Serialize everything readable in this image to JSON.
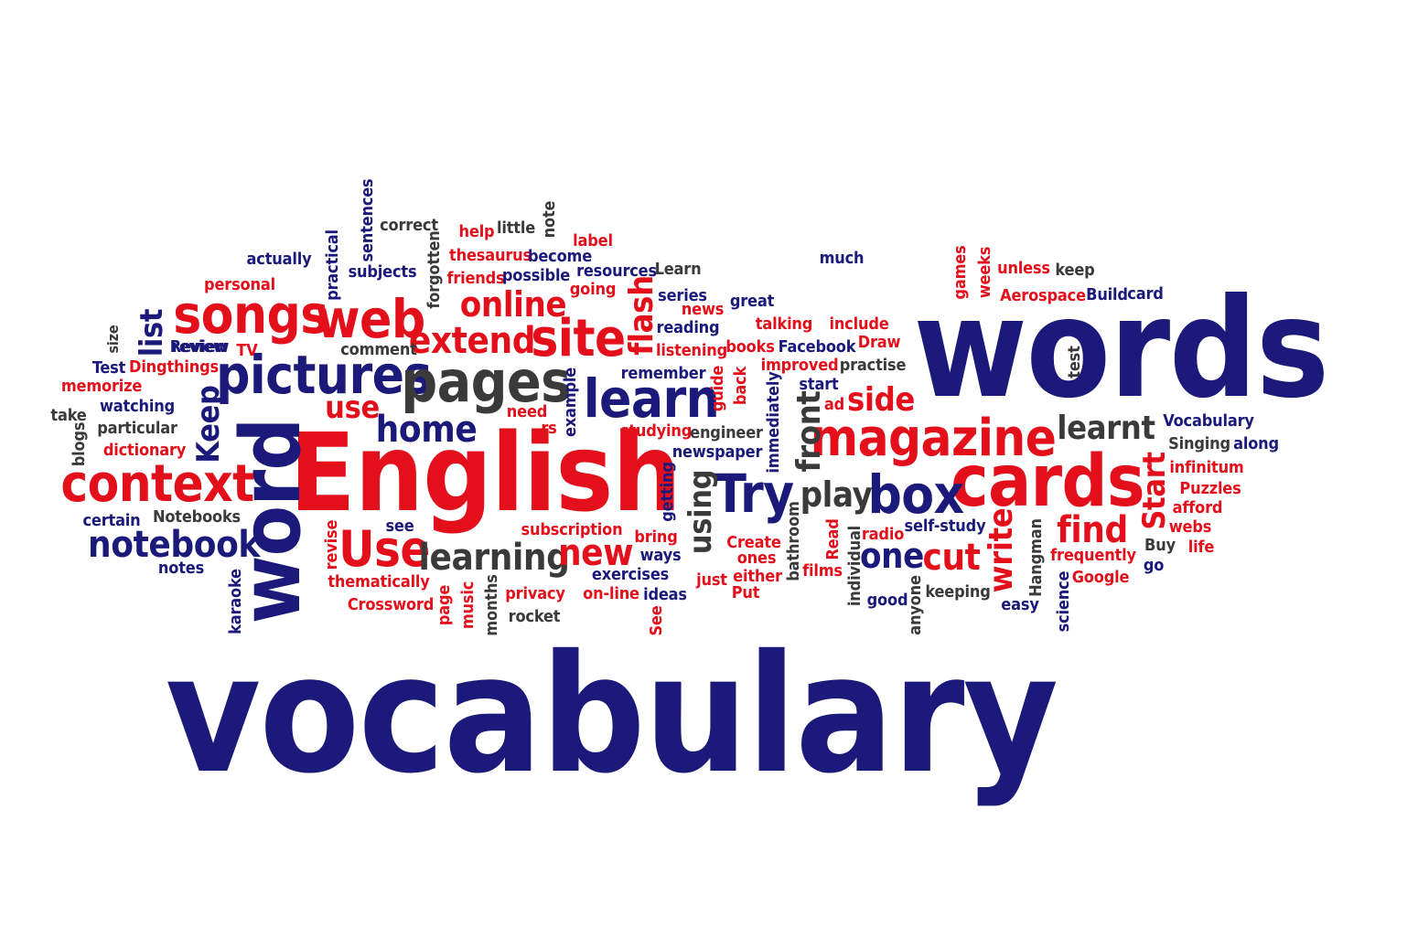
{
  "words": [
    {
      "id": "vocabulary",
      "text": "vocabulary",
      "color": "blue"
    },
    {
      "id": "words",
      "text": "words",
      "color": "blue"
    },
    {
      "id": "english",
      "text": "English",
      "color": "red"
    },
    {
      "id": "word",
      "text": "word",
      "color": "blue"
    },
    {
      "id": "cards",
      "text": "cards",
      "color": "red"
    },
    {
      "id": "review",
      "text": "Review",
      "color": "blue"
    },
    {
      "id": "pictures",
      "text": "pictures",
      "color": "blue"
    },
    {
      "id": "pages",
      "text": "pages",
      "color": "gray"
    },
    {
      "id": "songs",
      "text": "songs",
      "color": "red"
    },
    {
      "id": "web",
      "text": "web",
      "color": "red"
    },
    {
      "id": "context",
      "text": "context",
      "color": "red"
    },
    {
      "id": "magazine",
      "text": "magazine",
      "color": "red"
    },
    {
      "id": "learn",
      "text": "learn",
      "color": "blue"
    },
    {
      "id": "site",
      "text": "site",
      "color": "red"
    },
    {
      "id": "try",
      "text": "Try",
      "color": "blue"
    },
    {
      "id": "box",
      "text": "box",
      "color": "blue"
    },
    {
      "id": "use-cap",
      "text": "Use",
      "color": "red"
    },
    {
      "id": "notebook",
      "text": "notebook",
      "color": "blue"
    },
    {
      "id": "learning",
      "text": "learning",
      "color": "gray"
    },
    {
      "id": "extend",
      "text": "extend",
      "color": "red"
    },
    {
      "id": "online",
      "text": "online",
      "color": "red"
    },
    {
      "id": "home",
      "text": "home",
      "color": "blue"
    },
    {
      "id": "new",
      "text": "new",
      "color": "red"
    },
    {
      "id": "find",
      "text": "find",
      "color": "red"
    },
    {
      "id": "cut",
      "text": "cut",
      "color": "red"
    },
    {
      "id": "one",
      "text": "one",
      "color": "blue"
    },
    {
      "id": "play",
      "text": "play",
      "color": "gray"
    },
    {
      "id": "learnt",
      "text": "learnt",
      "color": "gray"
    },
    {
      "id": "side",
      "text": "side",
      "color": "red"
    },
    {
      "id": "use",
      "text": "use",
      "color": "red"
    },
    {
      "id": "keep-cap",
      "text": "Keep",
      "color": "blue"
    },
    {
      "id": "list",
      "text": "list",
      "color": "blue"
    },
    {
      "id": "flash",
      "text": "flash",
      "color": "red"
    },
    {
      "id": "front",
      "text": "front",
      "color": "gray"
    },
    {
      "id": "using",
      "text": "using",
      "color": "gray"
    },
    {
      "id": "write",
      "text": "write",
      "color": "red"
    },
    {
      "id": "start-cap",
      "text": "Start",
      "color": "red"
    },
    {
      "id": "sentences",
      "text": "sentences",
      "color": "blue"
    },
    {
      "id": "correct",
      "text": "correct",
      "color": "gray"
    },
    {
      "id": "help",
      "text": "help",
      "color": "red"
    },
    {
      "id": "little",
      "text": "little",
      "color": "gray"
    },
    {
      "id": "note",
      "text": "note",
      "color": "gray"
    },
    {
      "id": "label",
      "text": "label",
      "color": "red"
    },
    {
      "id": "thesaurus",
      "text": "thesaurus",
      "color": "red"
    },
    {
      "id": "become",
      "text": "become",
      "color": "blue"
    },
    {
      "id": "forgotten",
      "text": "forgotten",
      "color": "gray"
    },
    {
      "id": "practical",
      "text": "practical",
      "color": "blue"
    },
    {
      "id": "actually",
      "text": "actually",
      "color": "blue"
    },
    {
      "id": "subjects",
      "text": "subjects",
      "color": "blue"
    },
    {
      "id": "friends",
      "text": "friends",
      "color": "red"
    },
    {
      "id": "possible",
      "text": "possible",
      "color": "blue"
    },
    {
      "id": "resources",
      "text": "resources",
      "color": "blue"
    },
    {
      "id": "learn-cap",
      "text": "Learn",
      "color": "gray"
    },
    {
      "id": "personal",
      "text": "personal",
      "color": "red"
    },
    {
      "id": "going",
      "text": "going",
      "color": "red"
    },
    {
      "id": "series",
      "text": "series",
      "color": "blue"
    },
    {
      "id": "news",
      "text": "news",
      "color": "red"
    },
    {
      "id": "reading",
      "text": "reading",
      "color": "blue"
    },
    {
      "id": "listening",
      "text": "listening",
      "color": "red"
    },
    {
      "id": "great",
      "text": "great",
      "color": "blue"
    },
    {
      "id": "much",
      "text": "much",
      "color": "blue"
    },
    {
      "id": "games",
      "text": "games",
      "color": "red"
    },
    {
      "id": "weeks",
      "text": "weeks",
      "color": "red"
    },
    {
      "id": "unless",
      "text": "unless",
      "color": "red"
    },
    {
      "id": "keep",
      "text": "keep",
      "color": "gray"
    },
    {
      "id": "aerospace",
      "text": "Aerospace",
      "color": "red"
    },
    {
      "id": "build",
      "text": "Build",
      "color": "blue"
    },
    {
      "id": "card",
      "text": "card",
      "color": "blue"
    },
    {
      "id": "talking",
      "text": "talking",
      "color": "red"
    },
    {
      "id": "include",
      "text": "include",
      "color": "red"
    },
    {
      "id": "books",
      "text": "books",
      "color": "red"
    },
    {
      "id": "facebook",
      "text": "Facebook",
      "color": "blue"
    },
    {
      "id": "draw",
      "text": "Draw",
      "color": "red"
    },
    {
      "id": "improved",
      "text": "improved",
      "color": "red"
    },
    {
      "id": "practise",
      "text": "practise",
      "color": "gray"
    },
    {
      "id": "test",
      "text": "test",
      "color": "gray"
    },
    {
      "id": "size",
      "text": "size",
      "color": "gray"
    },
    {
      "id": "review",
      "text": "review",
      "color": "blue"
    },
    {
      "id": "tv",
      "text": "TV",
      "color": "red"
    },
    {
      "id": "comment",
      "text": "comment",
      "color": "gray"
    },
    {
      "id": "test-cap",
      "text": "Test",
      "color": "blue"
    },
    {
      "id": "dingthings",
      "text": "Dingthings",
      "color": "red"
    },
    {
      "id": "memorize",
      "text": "memorize",
      "color": "red"
    },
    {
      "id": "remember",
      "text": "remember",
      "color": "blue"
    },
    {
      "id": "guide",
      "text": "guide",
      "color": "red"
    },
    {
      "id": "back",
      "text": "back",
      "color": "red"
    },
    {
      "id": "immediately",
      "text": "immediately",
      "color": "blue"
    },
    {
      "id": "start",
      "text": "start",
      "color": "blue"
    },
    {
      "id": "ad",
      "text": "ad",
      "color": "red"
    },
    {
      "id": "example",
      "text": "example",
      "color": "blue"
    },
    {
      "id": "take",
      "text": "take",
      "color": "gray"
    },
    {
      "id": "watching",
      "text": "watching",
      "color": "blue"
    },
    {
      "id": "need",
      "text": "need",
      "color": "red"
    },
    {
      "id": "rs",
      "text": "rs",
      "color": "red"
    },
    {
      "id": "studying",
      "text": "studying",
      "color": "red"
    },
    {
      "id": "engineer",
      "text": "engineer",
      "color": "gray"
    },
    {
      "id": "newspaper",
      "text": "newspaper",
      "color": "blue"
    },
    {
      "id": "vocabulary-cap",
      "text": "Vocabulary",
      "color": "blue"
    },
    {
      "id": "singing",
      "text": "Singing",
      "color": "gray"
    },
    {
      "id": "along",
      "text": "along",
      "color": "blue"
    },
    {
      "id": "blogs",
      "text": "blogs",
      "color": "gray"
    },
    {
      "id": "particular",
      "text": "particular",
      "color": "gray"
    },
    {
      "id": "dictionary",
      "text": "dictionary",
      "color": "red"
    },
    {
      "id": "getting",
      "text": "getting",
      "color": "blue"
    },
    {
      "id": "infinitum",
      "text": "infinitum",
      "color": "red"
    },
    {
      "id": "puzzles",
      "text": "Puzzles",
      "color": "red"
    },
    {
      "id": "afford",
      "text": "afford",
      "color": "red"
    },
    {
      "id": "webs",
      "text": "webs",
      "color": "red"
    },
    {
      "id": "life",
      "text": "life",
      "color": "red"
    },
    {
      "id": "buy",
      "text": "Buy",
      "color": "gray"
    },
    {
      "id": "go",
      "text": "go",
      "color": "blue"
    },
    {
      "id": "certain",
      "text": "certain",
      "color": "blue"
    },
    {
      "id": "notebooks",
      "text": "Notebooks",
      "color": "gray"
    },
    {
      "id": "revise",
      "text": "revise",
      "color": "red"
    },
    {
      "id": "see",
      "text": "see",
      "color": "blue"
    },
    {
      "id": "subscription",
      "text": "subscription",
      "color": "red"
    },
    {
      "id": "bring",
      "text": "bring",
      "color": "red"
    },
    {
      "id": "create",
      "text": "Create",
      "color": "red"
    },
    {
      "id": "ones",
      "text": "ones",
      "color": "red"
    },
    {
      "id": "bathroom",
      "text": "bathroom",
      "color": "gray"
    },
    {
      "id": "read",
      "text": "Read",
      "color": "red"
    },
    {
      "id": "radio",
      "text": "radio",
      "color": "red"
    },
    {
      "id": "self-study",
      "text": "self-study",
      "color": "blue"
    },
    {
      "id": "hangman",
      "text": "Hangman",
      "color": "gray"
    },
    {
      "id": "frequently",
      "text": "frequently",
      "color": "red"
    },
    {
      "id": "google",
      "text": "Google",
      "color": "red"
    },
    {
      "id": "ways",
      "text": "ways",
      "color": "blue"
    },
    {
      "id": "notes",
      "text": "notes",
      "color": "blue"
    },
    {
      "id": "karaoke",
      "text": "karaoke",
      "color": "blue"
    },
    {
      "id": "thematically",
      "text": "thematically",
      "color": "red"
    },
    {
      "id": "exercises",
      "text": "exercises",
      "color": "blue"
    },
    {
      "id": "just",
      "text": "just",
      "color": "red"
    },
    {
      "id": "either",
      "text": "either",
      "color": "red"
    },
    {
      "id": "films",
      "text": "films",
      "color": "red"
    },
    {
      "id": "individual",
      "text": "individual",
      "color": "gray"
    },
    {
      "id": "good",
      "text": "good",
      "color": "blue"
    },
    {
      "id": "keeping",
      "text": "keeping",
      "color": "gray"
    },
    {
      "id": "science",
      "text": "science",
      "color": "blue"
    },
    {
      "id": "crossword",
      "text": "Crossword",
      "color": "red"
    },
    {
      "id": "page",
      "text": "page",
      "color": "red"
    },
    {
      "id": "music",
      "text": "music",
      "color": "red"
    },
    {
      "id": "months",
      "text": "months",
      "color": "gray"
    },
    {
      "id": "privacy",
      "text": "privacy",
      "color": "red"
    },
    {
      "id": "rocket",
      "text": "rocket",
      "color": "gray"
    },
    {
      "id": "on-line",
      "text": "on-line",
      "color": "red"
    },
    {
      "id": "ideas",
      "text": "ideas",
      "color": "blue"
    },
    {
      "id": "see-cap",
      "text": "See",
      "color": "red"
    },
    {
      "id": "put",
      "text": "Put",
      "color": "red"
    },
    {
      "id": "anyone",
      "text": "anyone",
      "color": "gray"
    },
    {
      "id": "easy",
      "text": "easy",
      "color": "blue"
    }
  ],
  "colors": {
    "blue": "#1b1a7a",
    "red": "#e3101c",
    "gray": "#3a3a3a",
    "background": "#ffffff"
  }
}
